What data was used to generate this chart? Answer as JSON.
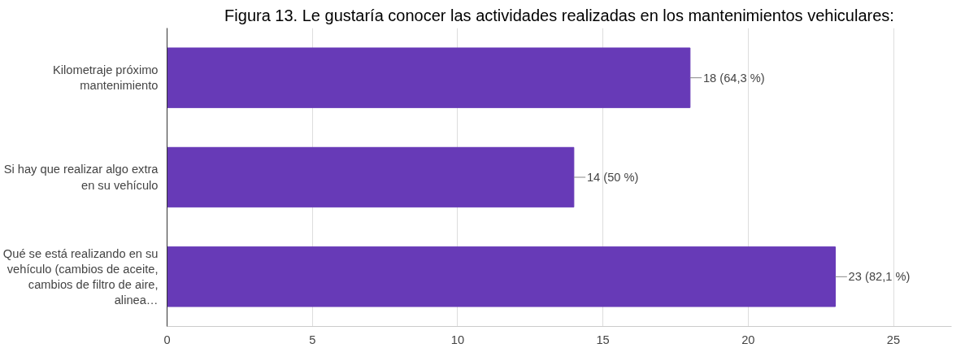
{
  "chart_data": {
    "type": "bar",
    "orientation": "horizontal",
    "title": "Figura 13. Le gustaría conocer las actividades realizadas en los mantenimientos vehiculares:",
    "categories": [
      "Kilometraje próximo mantenimiento",
      "Si hay que realizar algo extra en su vehículo",
      "Qué se está realizando en su vehículo (cambios de aceite, cambios de filtro de aire, alinea…"
    ],
    "values": [
      18,
      14,
      23
    ],
    "value_labels": [
      "18 (64,3 %)",
      "14 (50 %)",
      "23 (82,1 %)"
    ],
    "color": "#673ab7",
    "xlim": [
      0,
      27
    ],
    "xticks": [
      0,
      5,
      10,
      15,
      20,
      25
    ],
    "grid": "x"
  }
}
